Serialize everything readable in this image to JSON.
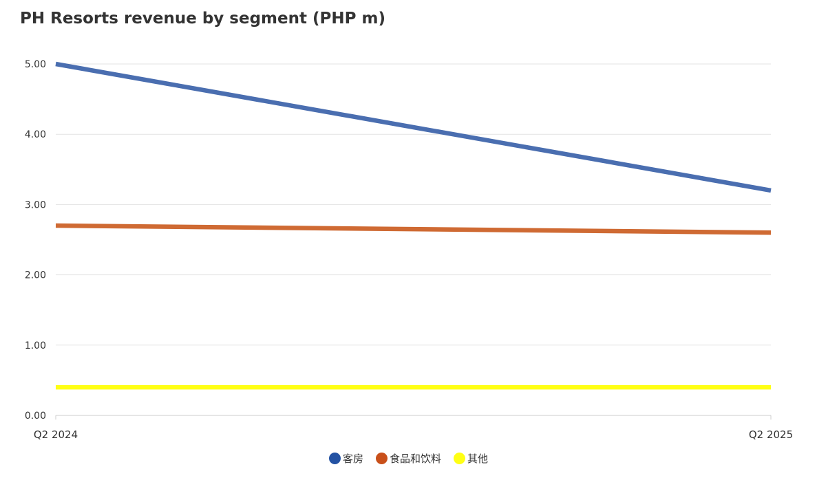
{
  "chart_data": {
    "type": "line",
    "title": "PH Resorts revenue by segment (PHP m)",
    "xlabel": "",
    "ylabel": "",
    "categories": [
      "Q2 2024",
      "Q2 2025"
    ],
    "ylim": [
      0,
      5
    ],
    "yticks": [
      "0.00",
      "1.00",
      "2.00",
      "3.00",
      "4.00",
      "5.00"
    ],
    "grid": true,
    "legend_position": "bottom",
    "series": [
      {
        "name": "客房",
        "values": [
          5.0,
          3.2
        ],
        "color": "#4a6eb0",
        "marker_color": "#2352a3"
      },
      {
        "name": "食品和饮料",
        "values": [
          2.7,
          2.6
        ],
        "color": "#cf6a33",
        "marker_color": "#c9501a"
      },
      {
        "name": "其他",
        "values": [
          0.4,
          0.4
        ],
        "color": "#ffff14",
        "marker_color": "#ffff14"
      }
    ]
  }
}
